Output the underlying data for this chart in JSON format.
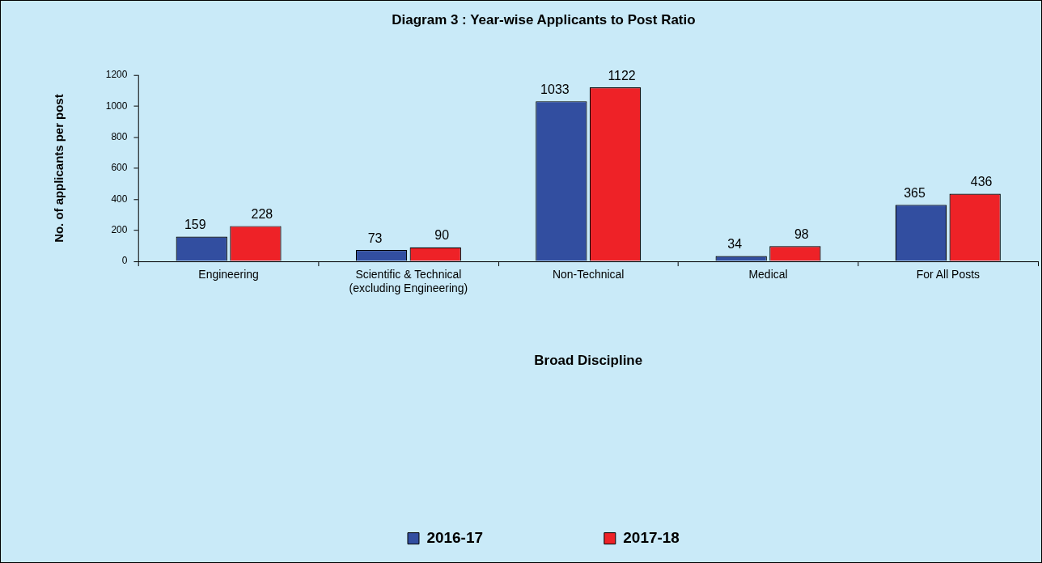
{
  "chart_data": {
    "type": "bar",
    "title": "Diagram 3 : Year-wise Applicants to Post Ratio",
    "xlabel": "Broad Discipline",
    "ylabel": "No. of applicants per post",
    "categories": [
      "Engineering",
      "Scientific & Technical\n(excluding Engineering)",
      "Non-Technical",
      "Medical",
      "For All Posts"
    ],
    "series": [
      {
        "name": "2016-17",
        "color": "#324ea0",
        "values": [
          159,
          73,
          1033,
          34,
          365
        ]
      },
      {
        "name": "2017-18",
        "color": "#ee2227",
        "values": [
          228,
          90,
          1122,
          98,
          436
        ]
      }
    ],
    "ylim": [
      0,
      1200
    ],
    "yticks": [
      0,
      200,
      400,
      600,
      800,
      1000,
      1200
    ],
    "grid": false,
    "legend": "bottom",
    "data_labels": true
  }
}
